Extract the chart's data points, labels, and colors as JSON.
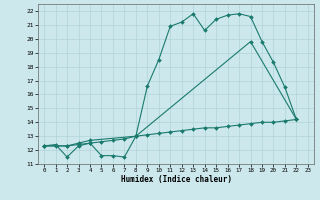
{
  "xlabel": "Humidex (Indice chaleur)",
  "bg_color": "#cce8ec",
  "line_color": "#1a7a6e",
  "grid_color": "#b0d4d8",
  "line1_x": [
    0,
    1,
    2,
    3,
    4,
    5,
    6,
    7,
    8,
    9,
    10,
    11,
    12,
    13,
    14,
    15,
    16,
    17,
    18,
    19,
    20,
    21,
    22
  ],
  "line1_y": [
    12.3,
    12.4,
    11.5,
    12.3,
    12.5,
    11.6,
    11.6,
    11.5,
    13.0,
    16.6,
    18.5,
    20.9,
    21.2,
    21.8,
    20.6,
    21.4,
    21.7,
    21.8,
    21.6,
    19.8,
    18.3,
    16.5,
    14.2
  ],
  "line2_x": [
    0,
    2,
    3,
    4,
    8,
    18,
    22
  ],
  "line2_y": [
    12.3,
    12.3,
    12.5,
    12.7,
    13.0,
    19.8,
    14.2
  ],
  "line3_x": [
    0,
    1,
    2,
    3,
    4,
    5,
    6,
    7,
    8,
    9,
    10,
    11,
    12,
    13,
    14,
    15,
    16,
    17,
    18,
    19,
    20,
    21,
    22
  ],
  "line3_y": [
    12.3,
    12.3,
    12.3,
    12.4,
    12.5,
    12.6,
    12.7,
    12.8,
    13.0,
    13.1,
    13.2,
    13.3,
    13.4,
    13.5,
    13.6,
    13.6,
    13.7,
    13.8,
    13.9,
    14.0,
    14.0,
    14.1,
    14.2
  ],
  "xlim": [
    -0.5,
    23.5
  ],
  "ylim": [
    11,
    22.5
  ],
  "xticks": [
    0,
    1,
    2,
    3,
    4,
    5,
    6,
    7,
    8,
    9,
    10,
    11,
    12,
    13,
    14,
    15,
    16,
    17,
    18,
    19,
    20,
    21,
    22,
    23
  ],
  "yticks": [
    11,
    12,
    13,
    14,
    15,
    16,
    17,
    18,
    19,
    20,
    21,
    22
  ]
}
